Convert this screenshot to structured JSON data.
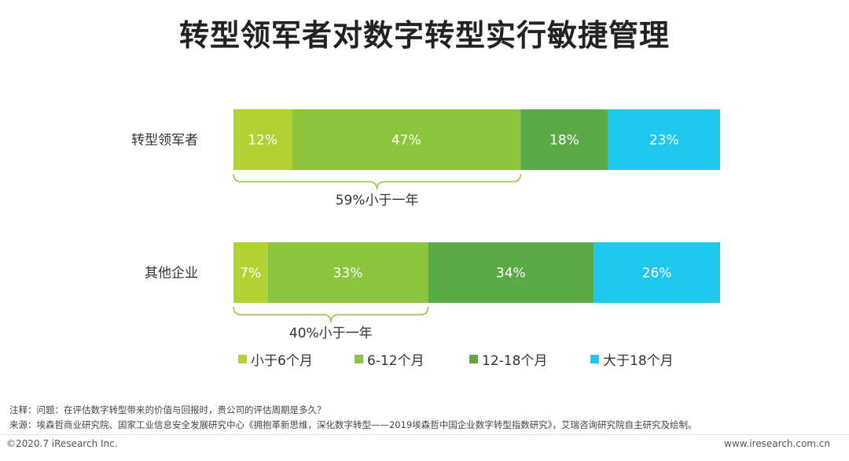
{
  "title": "转型领军者对数字转型实行敏捷管理",
  "chart_data": {
    "type": "bar",
    "orientation": "horizontal",
    "stacked": true,
    "categories": [
      "转型领军者",
      "其他企业"
    ],
    "series": [
      {
        "name": "小于6个月",
        "values": [
          12,
          7
        ],
        "color": "#b2d234"
      },
      {
        "name": "6-12个月",
        "values": [
          47,
          33
        ],
        "color": "#8cc63f"
      },
      {
        "name": "12-18个月",
        "values": [
          18,
          34
        ],
        "color": "#5aab46"
      },
      {
        "name": "大于18个月",
        "values": [
          23,
          26
        ],
        "color": "#1ec8ef"
      }
    ],
    "data_labels": [
      [
        "12%",
        "47%",
        "18%",
        "23%"
      ],
      [
        "7%",
        "33%",
        "34%",
        "26%"
      ]
    ],
    "annotations": [
      "59%小于一年",
      "40%小于一年"
    ],
    "xlim": [
      0,
      100
    ],
    "grid": false,
    "legend_position": "bottom"
  },
  "notes": {
    "line1": "注释：问题：在评估数字转型带来的价值与回报时，贵公司的评估周期是多久？",
    "line2": "来源：埃森哲商业研究院、国家工业信息安全发展研究中心《拥抱革新思维，深化数字转型——2019埃森哲中国企业数字转型指数研究》，艾瑞咨询研究院自主研究及绘制。"
  },
  "footer": {
    "left": "©2020.7 iResearch Inc.",
    "right": "www.iresearch.com.cn"
  }
}
